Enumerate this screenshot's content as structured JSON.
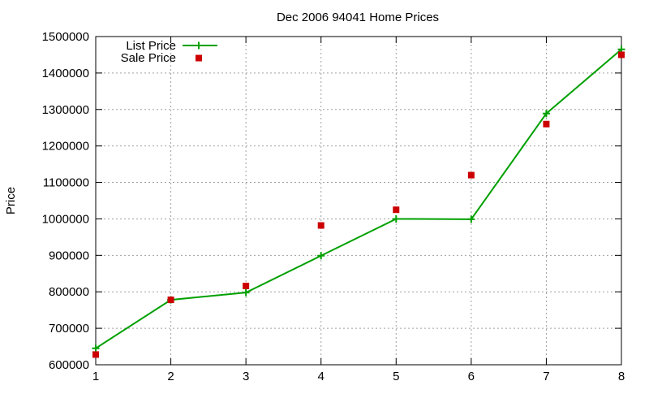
{
  "chart_data": {
    "type": "line",
    "title": "Dec 2006 94041 Home Prices",
    "xlabel": "",
    "ylabel": "Price",
    "x": [
      1,
      2,
      3,
      4,
      5,
      6,
      7,
      8
    ],
    "xlim": [
      1,
      8
    ],
    "ylim": [
      600000,
      1500000
    ],
    "xticks": [
      "1",
      "2",
      "3",
      "4",
      "5",
      "6",
      "7",
      "8"
    ],
    "yticks": [
      "600000",
      "700000",
      "800000",
      "900000",
      "1000000",
      "1100000",
      "1200000",
      "1300000",
      "1400000",
      "1500000"
    ],
    "grid": true,
    "legend_position": "top-left",
    "series": [
      {
        "name": "List Price",
        "style": "line with plus markers",
        "color": "#00a000",
        "values": [
          645000,
          778000,
          798000,
          899000,
          1000000,
          999000,
          1289000,
          1465000
        ]
      },
      {
        "name": "Sale Price",
        "style": "square markers",
        "color": "#cc0000",
        "values": [
          628000,
          778000,
          816000,
          982000,
          1025000,
          1120000,
          1260000,
          1450000
        ]
      }
    ]
  }
}
